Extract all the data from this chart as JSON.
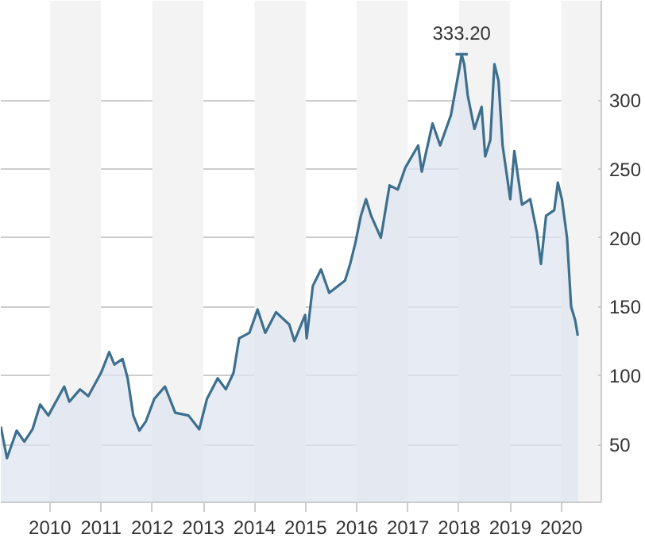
{
  "chart_data": {
    "type": "area",
    "x": [
      2009.04,
      2009.16,
      2009.35,
      2009.5,
      2009.66,
      2009.81,
      2009.97,
      2010.28,
      2010.38,
      2010.59,
      2010.75,
      2011.0,
      2011.16,
      2011.26,
      2011.42,
      2011.52,
      2011.63,
      2011.75,
      2011.88,
      2012.04,
      2012.25,
      2012.45,
      2012.71,
      2012.92,
      2013.07,
      2013.28,
      2013.44,
      2013.59,
      2013.7,
      2013.9,
      2014.06,
      2014.21,
      2014.42,
      2014.68,
      2014.78,
      2014.99,
      2015.02,
      2015.14,
      2015.3,
      2015.46,
      2015.77,
      2015.87,
      2015.97,
      2016.08,
      2016.18,
      2016.28,
      2016.47,
      2016.64,
      2016.8,
      2016.95,
      2017.2,
      2017.27,
      2017.48,
      2017.63,
      2017.84,
      2018.02,
      2018.05,
      2018.1,
      2018.17,
      2018.3,
      2018.44,
      2018.51,
      2018.61,
      2018.69,
      2018.77,
      2018.85,
      2019.0,
      2019.08,
      2019.23,
      2019.39,
      2019.52,
      2019.6,
      2019.7,
      2019.86,
      2019.93,
      2020.01,
      2020.11,
      2020.19,
      2020.27,
      2020.32
    ],
    "series": [
      {
        "color": "#3d6f8e",
        "values": [
          63,
          40,
          60,
          52,
          61,
          79,
          71,
          92,
          81,
          90,
          85,
          102,
          117,
          108,
          112,
          98,
          71,
          60,
          67,
          83,
          92,
          73,
          71,
          61,
          83,
          98,
          90,
          102,
          127,
          131,
          148,
          131,
          146,
          137,
          125,
          144,
          127,
          165,
          177,
          160,
          169,
          181,
          196,
          216,
          228,
          216,
          200,
          238,
          235,
          251,
          267,
          248,
          283,
          267,
          289,
          326,
          333,
          326,
          303,
          279,
          295,
          259,
          271,
          326,
          314,
          267,
          228,
          263,
          224,
          228,
          204,
          181,
          216,
          220,
          240,
          228,
          200,
          150,
          140,
          129
        ]
      }
    ],
    "xlim": [
      2009.04,
      2020.78
    ],
    "xticks": [
      2010,
      2011,
      2012,
      2013,
      2014,
      2015,
      2016,
      2017,
      2018,
      2019,
      2020
    ],
    "ylim": [
      8,
      372
    ],
    "yticks": [
      50,
      100,
      150,
      200,
      250,
      300
    ],
    "grid": "y",
    "bands": [
      {
        "axis": "x",
        "from": 2010,
        "to": 2011,
        "color": "#f3f3f3"
      },
      {
        "axis": "x",
        "from": 2012,
        "to": 2013,
        "color": "#f3f3f3"
      },
      {
        "axis": "x",
        "from": 2014,
        "to": 2015,
        "color": "#f3f3f3"
      },
      {
        "axis": "x",
        "from": 2016,
        "to": 2017,
        "color": "#f3f3f3"
      },
      {
        "axis": "x",
        "from": 2018,
        "to": 2019,
        "color": "#f3f3f3"
      },
      {
        "axis": "x",
        "from": 2020,
        "to": 2020.78,
        "color": "#f3f3f3"
      }
    ],
    "annotations": [
      {
        "text": "333.20",
        "x": 2018.05,
        "y": 333.2
      }
    ]
  }
}
